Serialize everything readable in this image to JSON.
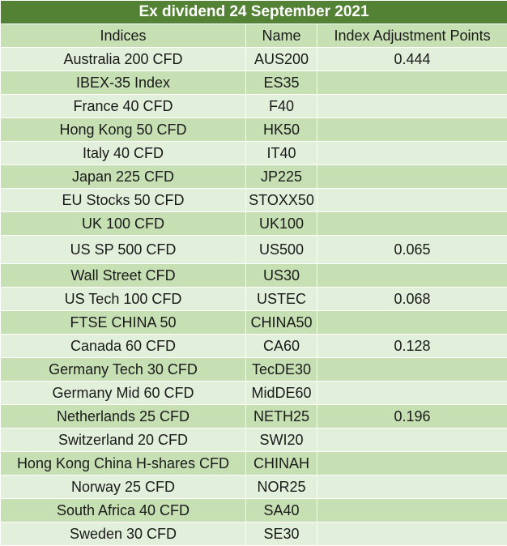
{
  "title": "Ex dividend 24 September 2021",
  "headers": {
    "indices": "Indices",
    "name": "Name",
    "points": "Index Adjustment Points"
  },
  "rows": [
    {
      "index": "Australia 200 CFD",
      "name": "AUS200",
      "points": "0.444"
    },
    {
      "index": "IBEX-35 Index",
      "name": "ES35",
      "points": ""
    },
    {
      "index": "France 40 CFD",
      "name": "F40",
      "points": ""
    },
    {
      "index": "Hong Kong 50 CFD",
      "name": "HK50",
      "points": ""
    },
    {
      "index": "Italy 40 CFD",
      "name": "IT40",
      "points": ""
    },
    {
      "index": "Japan 225 CFD",
      "name": "JP225",
      "points": ""
    },
    {
      "index": "EU Stocks 50 CFD",
      "name": "STOXX50",
      "points": ""
    },
    {
      "index": "UK 100 CFD",
      "name": "UK100",
      "points": ""
    },
    {
      "index": "US SP 500 CFD",
      "name": "US500",
      "points": "0.065"
    },
    {
      "index": "Wall Street CFD",
      "name": "US30",
      "points": ""
    },
    {
      "index": "US Tech 100 CFD",
      "name": "USTEC",
      "points": "0.068"
    },
    {
      "index": "FTSE CHINA 50",
      "name": "CHINA50",
      "points": ""
    },
    {
      "index": "Canada 60 CFD",
      "name": "CA60",
      "points": "0.128"
    },
    {
      "index": "Germany Tech 30 CFD",
      "name": "TecDE30",
      "points": ""
    },
    {
      "index": "Germany Mid 60 CFD",
      "name": "MidDE60",
      "points": ""
    },
    {
      "index": "Netherlands 25 CFD",
      "name": "NETH25",
      "points": "0.196"
    },
    {
      "index": "Switzerland 20 CFD",
      "name": "SWI20",
      "points": ""
    },
    {
      "index": "Hong Kong China H-shares CFD",
      "name": "CHINAH",
      "points": ""
    },
    {
      "index": "Norway 25 CFD",
      "name": "NOR25",
      "points": ""
    },
    {
      "index": "South Africa 40 CFD",
      "name": "SA40",
      "points": ""
    },
    {
      "index": "Sweden 30 CFD",
      "name": "SE30",
      "points": ""
    }
  ]
}
